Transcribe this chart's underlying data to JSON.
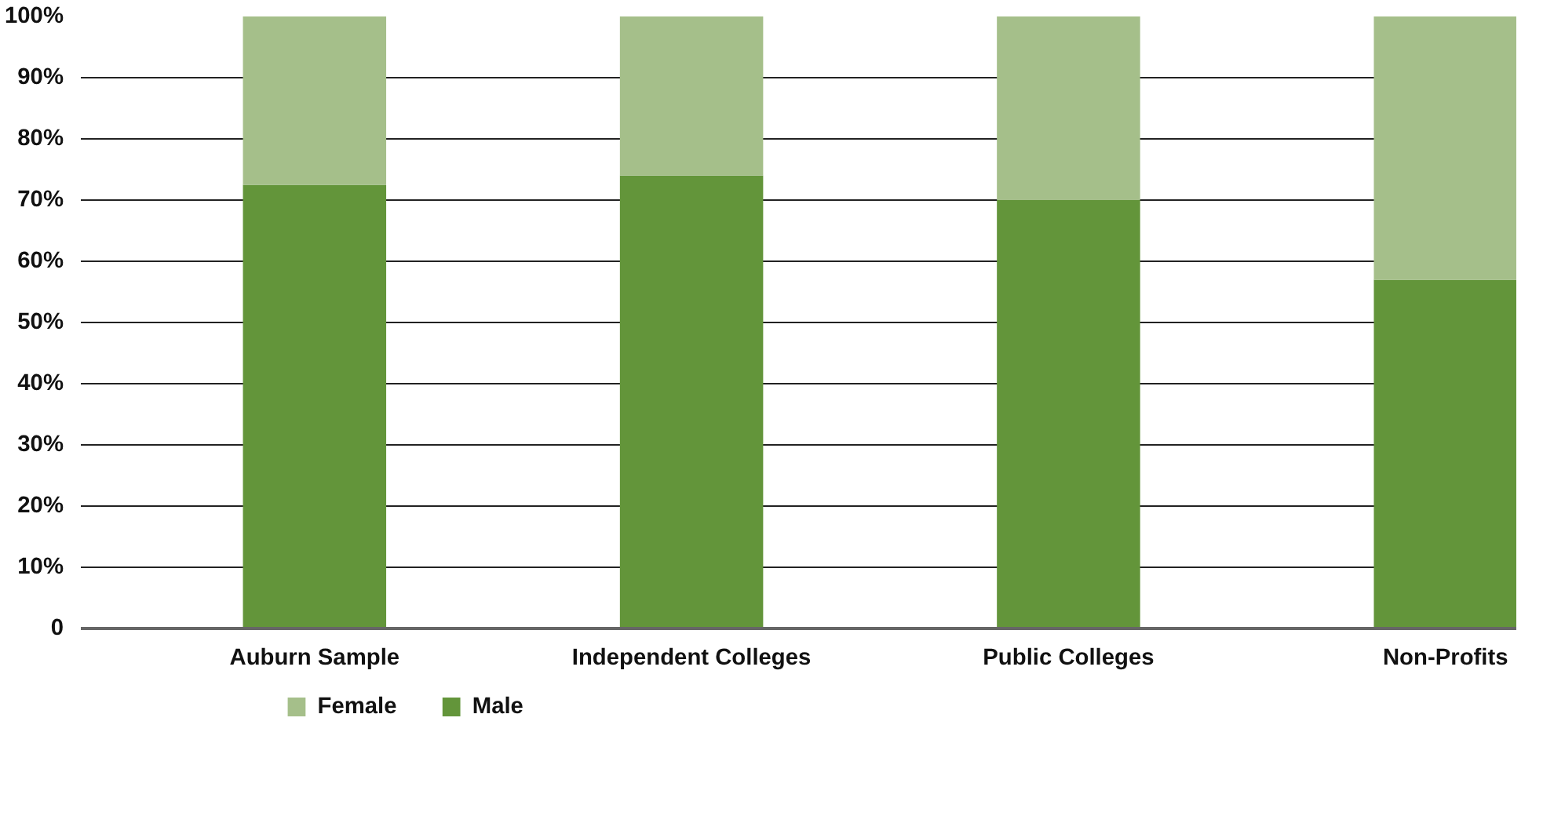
{
  "chart_data": {
    "type": "bar",
    "stacked": true,
    "categories": [
      "Auburn Sample",
      "Independent Colleges",
      "Public Colleges",
      "Non-Profits"
    ],
    "series": [
      {
        "name": "Male",
        "color": "#63953a",
        "values": [
          72.5,
          74,
          70,
          57
        ]
      },
      {
        "name": "Female",
        "color": "#a5bf8a",
        "values": [
          27.5,
          26,
          30,
          43
        ]
      }
    ],
    "ylim": [
      0,
      100
    ],
    "yticks": [
      0,
      {
        "value": 10,
        "label": "10%"
      },
      {
        "value": 20,
        "label": "20%"
      },
      {
        "value": 30,
        "label": "30%"
      },
      {
        "value": 40,
        "label": "40%"
      },
      {
        "value": 50,
        "label": "50%"
      },
      {
        "value": 60,
        "label": "60%"
      },
      {
        "value": 70,
        "label": "70%"
      },
      {
        "value": 80,
        "label": "80%"
      },
      {
        "value": 90,
        "label": "90%"
      },
      {
        "value": 100,
        "label": "100%"
      }
    ],
    "grid": "y",
    "legend": "bottom left"
  }
}
